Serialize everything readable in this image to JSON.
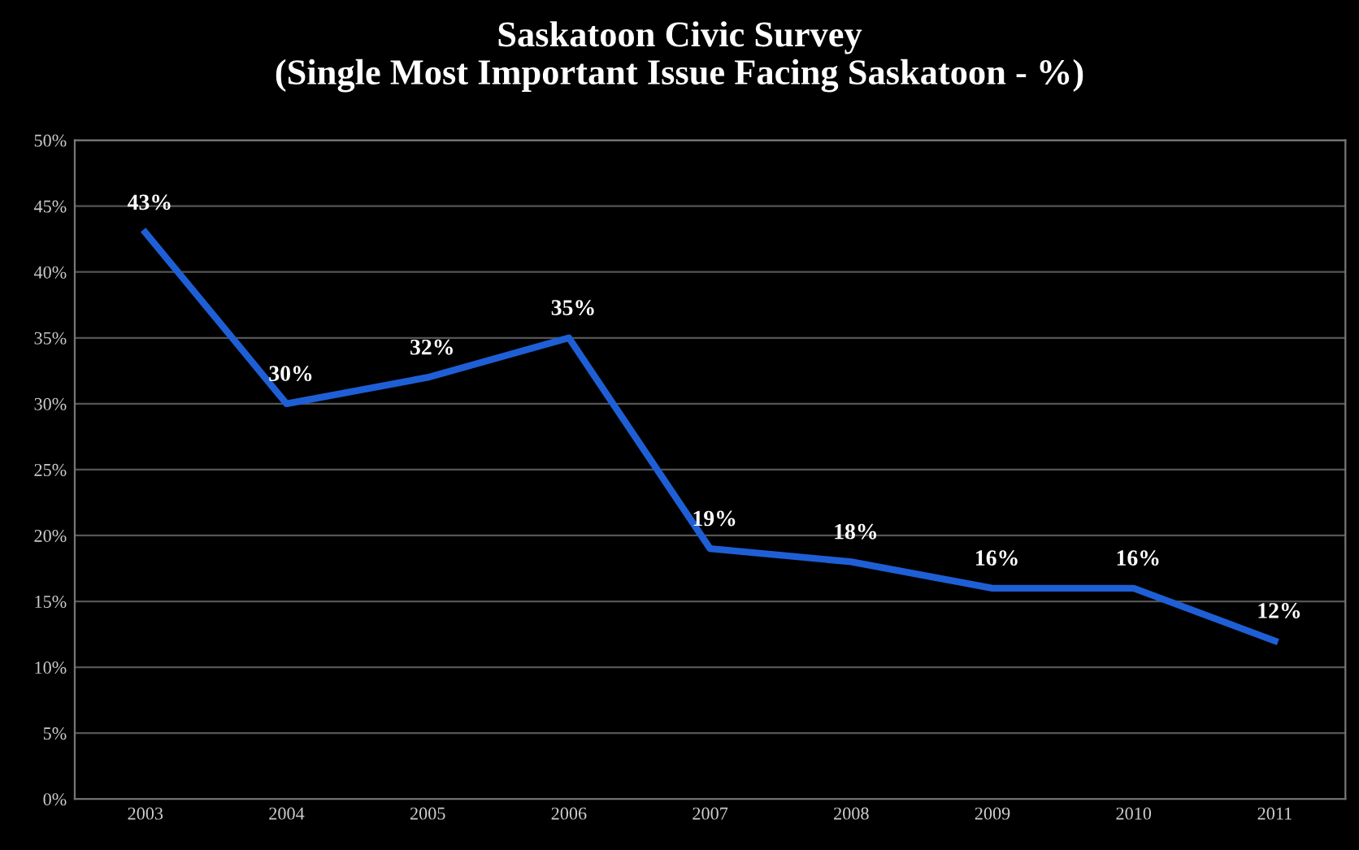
{
  "chart_data": {
    "type": "line",
    "title": "Saskatoon Civic Survey\n(Single Most Important Issue Facing Saskatoon - %)",
    "categories": [
      "2003",
      "2004",
      "2005",
      "2006",
      "2007",
      "2008",
      "2009",
      "2010",
      "2011"
    ],
    "series": [
      {
        "color": "#1f5fd6",
        "values": [
          43,
          30,
          32,
          35,
          19,
          18,
          16,
          16,
          12
        ],
        "value_labels": [
          "43%",
          "30%",
          "32%",
          "35%",
          "19%",
          "18%",
          "16%",
          "16%",
          "12%"
        ]
      }
    ],
    "ylim": [
      0,
      50
    ],
    "yticks": [
      {
        "value": 0,
        "label": "0%"
      },
      {
        "value": 5,
        "label": "5%"
      },
      {
        "value": 10,
        "label": "10%"
      },
      {
        "value": 15,
        "label": "15%"
      },
      {
        "value": 20,
        "label": "20%"
      },
      {
        "value": 25,
        "label": "25%"
      },
      {
        "value": 30,
        "label": "30%"
      },
      {
        "value": 35,
        "label": "35%"
      },
      {
        "value": 40,
        "label": "40%"
      },
      {
        "value": 45,
        "label": "45%"
      },
      {
        "value": 50,
        "label": "50%"
      }
    ],
    "grid": "y",
    "marker": "none",
    "line_style": "solid",
    "legend": false
  }
}
